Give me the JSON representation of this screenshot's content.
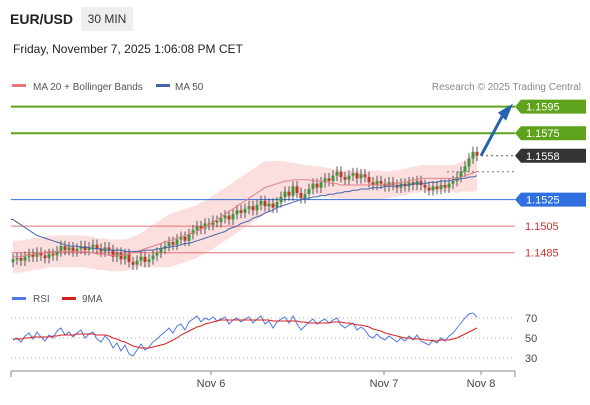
{
  "header": {
    "symbol": "EUR/USD",
    "timeframe": "30 MIN",
    "datetime": "Friday, November 7, 2025 1:06:08 PM CET"
  },
  "legend": {
    "ma20": "MA 20 + Bollinger Bands",
    "ma50": "MA 50",
    "credit": "Research © 2025 Trading Central"
  },
  "colors": {
    "resistance": "#5fa31d",
    "current": "#333333",
    "pivot": "#2f6fe0",
    "support": "#e8747a",
    "ma20": "#e57f86",
    "ma50": "#4466a8",
    "band": "#fbdede",
    "bull": "#3c9a3c",
    "bear": "#c0392b",
    "rsi": "#4f78e3",
    "rsi_ma": "#d62020",
    "arrow": "#2563ae"
  },
  "chart_data": [
    {
      "type": "candlestick",
      "x_labels": [
        "Nov 6",
        "Nov 7",
        "Nov 8"
      ],
      "ylim": [
        1.1472,
        1.1603
      ],
      "levels": [
        {
          "value": 1.1595,
          "label": "1.1595",
          "kind": "resistance"
        },
        {
          "value": 1.1575,
          "label": "1.1575",
          "kind": "resistance"
        },
        {
          "value": 1.1558,
          "label": "1.1558",
          "kind": "current"
        },
        {
          "value": 1.1525,
          "label": "1.1525",
          "kind": "pivot"
        },
        {
          "value": 1.1505,
          "label": "1.1505",
          "kind": "support"
        },
        {
          "value": 1.1485,
          "label": "1.1485",
          "kind": "support"
        }
      ],
      "close": [
        1.148,
        1.1481,
        1.1479,
        1.1482,
        1.1484,
        1.1482,
        1.1485,
        1.1483,
        1.1481,
        1.1484,
        1.1483,
        1.1486,
        1.149,
        1.1487,
        1.1489,
        1.1486,
        1.1488,
        1.149,
        1.1487,
        1.1489,
        1.1491,
        1.1488,
        1.1486,
        1.1489,
        1.1487,
        1.1482,
        1.1485,
        1.148,
        1.1484,
        1.1478,
        1.1476,
        1.1479,
        1.1482,
        1.1478,
        1.148,
        1.1483,
        1.1485,
        1.1488,
        1.149,
        1.1493,
        1.1491,
        1.1495,
        1.1497,
        1.1494,
        1.1499,
        1.1502,
        1.1505,
        1.1503,
        1.1507,
        1.1506,
        1.1509,
        1.1508,
        1.1511,
        1.1513,
        1.151,
        1.1514,
        1.1517,
        1.1515,
        1.1518,
        1.152,
        1.1517,
        1.1521,
        1.1524,
        1.152,
        1.1522,
        1.1519,
        1.1523,
        1.1527,
        1.1531,
        1.1528,
        1.1535,
        1.153,
        1.1526,
        1.1529,
        1.1533,
        1.1537,
        1.1534,
        1.1538,
        1.1541,
        1.1539,
        1.1543,
        1.1546,
        1.1542,
        1.154,
        1.1543,
        1.1545,
        1.1541,
        1.1544,
        1.1542,
        1.1538,
        1.1536,
        1.1539,
        1.1537,
        1.1535,
        1.1538,
        1.1536,
        1.1534,
        1.1537,
        1.1535,
        1.1538,
        1.1536,
        1.1539,
        1.1536,
        1.1534,
        1.1532,
        1.1535,
        1.1533,
        1.1536,
        1.1534,
        1.1537,
        1.1539,
        1.1542,
        1.1546,
        1.155,
        1.1556,
        1.1561,
        1.1558
      ],
      "ma20": [
        1.1482,
        1.1482,
        1.1482,
        1.1483,
        1.1483,
        1.1484,
        1.1484,
        1.1485,
        1.1485,
        1.1486,
        1.1486,
        1.1486,
        1.1486,
        1.1486,
        1.1486,
        1.1486,
        1.1486,
        1.1486,
        1.1486,
        1.1485,
        1.1485,
        1.1484,
        1.1484,
        1.1484,
        1.1483,
        1.1483,
        1.1483,
        1.1483,
        1.1483,
        1.1484,
        1.1485,
        1.1486,
        1.1487,
        1.1488,
        1.1489,
        1.149,
        1.1491,
        1.1492,
        1.1493,
        1.1494,
        1.1495,
        1.1496,
        1.1497,
        1.1498,
        1.1499,
        1.15,
        1.1501,
        1.1503,
        1.1504,
        1.1506,
        1.1508,
        1.151,
        1.1512,
        1.1514,
        1.1516,
        1.1518,
        1.152,
        1.1522,
        1.1524,
        1.1526,
        1.1528,
        1.153,
        1.1532,
        1.1534,
        1.1535,
        1.1536,
        1.1537,
        1.1538,
        1.1539,
        1.1539,
        1.154,
        1.154,
        1.154,
        1.154,
        1.154,
        1.1539,
        1.1539,
        1.1539,
        1.1538,
        1.1538,
        1.1537,
        1.1537,
        1.1536,
        1.1536,
        1.1536,
        1.1536,
        1.1536,
        1.1536,
        1.1536,
        1.1536,
        1.1536,
        1.1536,
        1.1536,
        1.1536,
        1.1536,
        1.1537,
        1.1537,
        1.1538,
        1.1538,
        1.1539,
        1.154,
        1.154,
        1.1541,
        1.1541,
        1.1541,
        1.1541,
        1.1541,
        1.1541,
        1.1541,
        1.1541,
        1.1541,
        1.1541,
        1.1542,
        1.1543,
        1.1544,
        1.1545,
        1.1546
      ],
      "bb_width": [
        0.0012,
        0.0012,
        0.0012,
        0.0012,
        0.0012,
        0.0012,
        0.0012,
        0.0012,
        0.0012,
        0.0012,
        0.0012,
        0.0012,
        0.0012,
        0.0012,
        0.0012,
        0.0012,
        0.0012,
        0.0012,
        0.0012,
        0.0012,
        0.0012,
        0.0012,
        0.0012,
        0.0012,
        0.0012,
        0.0012,
        0.0012,
        0.0012,
        0.0012,
        0.0012,
        0.0012,
        0.0012,
        0.0013,
        0.0014,
        0.0015,
        0.0016,
        0.0017,
        0.0018,
        0.0019,
        0.002,
        0.002,
        0.002,
        0.002,
        0.002,
        0.002,
        0.002,
        0.002,
        0.002,
        0.002,
        0.002,
        0.002,
        0.002,
        0.002,
        0.002,
        0.002,
        0.002,
        0.002,
        0.002,
        0.002,
        0.002,
        0.002,
        0.002,
        0.002,
        0.002,
        0.0019,
        0.0018,
        0.0017,
        0.0016,
        0.0015,
        0.0014,
        0.0013,
        0.0012,
        0.0012,
        0.0011,
        0.0011,
        0.0011,
        0.0011,
        0.0011,
        0.0011,
        0.0011,
        0.0011,
        0.0011,
        0.0011,
        0.0011,
        0.0011,
        0.0011,
        0.0011,
        0.0011,
        0.0011,
        0.0011,
        0.0011,
        0.0011,
        0.0011,
        0.001,
        0.001,
        0.001,
        0.001,
        0.001,
        0.001,
        0.001,
        0.001,
        0.001,
        0.001,
        0.001,
        0.001,
        0.001,
        0.001,
        0.001,
        0.001,
        0.001,
        0.001,
        0.0011,
        0.0011,
        0.0012,
        0.0013,
        0.0014,
        0.0014
      ],
      "ma50": [
        1.151,
        1.1508,
        1.1506,
        1.1504,
        1.1502,
        1.15,
        1.1498,
        1.1497,
        1.1496,
        1.1495,
        1.1494,
        1.1493,
        1.1492,
        1.1491,
        1.149,
        1.149,
        1.149,
        1.1489,
        1.1489,
        1.1489,
        1.1488,
        1.1488,
        1.1488,
        1.1487,
        1.1487,
        1.1487,
        1.1487,
        1.1487,
        1.1486,
        1.1486,
        1.1486,
        1.1486,
        1.1486,
        1.1487,
        1.1487,
        1.1487,
        1.1488,
        1.1488,
        1.1489,
        1.1489,
        1.149,
        1.149,
        1.1491,
        1.1492,
        1.1492,
        1.1493,
        1.1494,
        1.1495,
        1.1496,
        1.1497,
        1.1498,
        1.1499,
        1.15,
        1.1501,
        1.1503,
        1.1504,
        1.1505,
        1.1507,
        1.1508,
        1.1509,
        1.1511,
        1.1512,
        1.1513,
        1.1515,
        1.1516,
        1.1517,
        1.1519,
        1.152,
        1.1521,
        1.1522,
        1.1523,
        1.1524,
        1.1525,
        1.1526,
        1.1526,
        1.1527,
        1.1527,
        1.1528,
        1.1528,
        1.1529,
        1.1529,
        1.153,
        1.153,
        1.1531,
        1.1531,
        1.1532,
        1.1532,
        1.1533,
        1.1533,
        1.1533,
        1.1534,
        1.1534,
        1.1534,
        1.1535,
        1.1535,
        1.1535,
        1.1535,
        1.1536,
        1.1536,
        1.1536,
        1.1537,
        1.1537,
        1.1537,
        1.1537,
        1.1538,
        1.1538,
        1.1538,
        1.1539,
        1.1539,
        1.1539,
        1.154,
        1.154,
        1.1541,
        1.1541,
        1.1542,
        1.1542,
        1.1543
      ],
      "forecast_target": 1.1595
    },
    {
      "type": "line",
      "series": [
        {
          "name": "RSI"
        },
        {
          "name": "9MA"
        }
      ],
      "yticks": [
        70,
        50,
        30
      ],
      "ylim": [
        22,
        78
      ],
      "rsi": [
        48,
        50,
        46,
        52,
        55,
        49,
        56,
        51,
        47,
        53,
        50,
        57,
        60,
        53,
        56,
        51,
        55,
        58,
        50,
        54,
        56,
        49,
        46,
        52,
        48,
        40,
        45,
        37,
        43,
        34,
        32,
        38,
        44,
        38,
        41,
        46,
        49,
        53,
        56,
        60,
        55,
        62,
        64,
        58,
        66,
        69,
        72,
        66,
        70,
        68,
        71,
        67,
        69,
        71,
        64,
        68,
        70,
        66,
        69,
        71,
        65,
        69,
        72,
        64,
        67,
        60,
        66,
        69,
        71,
        65,
        72,
        64,
        58,
        62,
        66,
        69,
        64,
        67,
        69,
        65,
        68,
        70,
        63,
        60,
        63,
        65,
        58,
        61,
        58,
        52,
        50,
        54,
        50,
        48,
        52,
        49,
        46,
        50,
        47,
        52,
        48,
        53,
        47,
        45,
        43,
        48,
        45,
        50,
        47,
        52,
        55,
        60,
        65,
        70,
        74,
        75,
        71
      ],
      "rsi_ma": [
        49,
        49,
        49,
        50,
        50,
        51,
        51,
        51,
        51,
        51,
        52,
        52,
        53,
        53,
        53,
        53,
        54,
        54,
        54,
        54,
        54,
        53,
        53,
        53,
        52,
        50,
        49,
        47,
        46,
        44,
        42,
        41,
        40,
        40,
        40,
        41,
        42,
        43,
        44,
        46,
        48,
        50,
        53,
        55,
        57,
        59,
        61,
        62,
        64,
        65,
        66,
        67,
        68,
        68,
        68,
        68,
        68,
        68,
        68,
        68,
        68,
        68,
        68,
        68,
        68,
        67,
        67,
        67,
        67,
        67,
        67,
        67,
        66,
        66,
        65,
        65,
        65,
        65,
        65,
        65,
        66,
        66,
        66,
        65,
        65,
        64,
        63,
        63,
        62,
        61,
        59,
        58,
        57,
        55,
        54,
        53,
        52,
        51,
        50,
        50,
        49,
        49,
        49,
        48,
        48,
        47,
        47,
        48,
        48,
        48,
        49,
        50,
        52,
        54,
        56,
        58,
        60
      ]
    }
  ]
}
